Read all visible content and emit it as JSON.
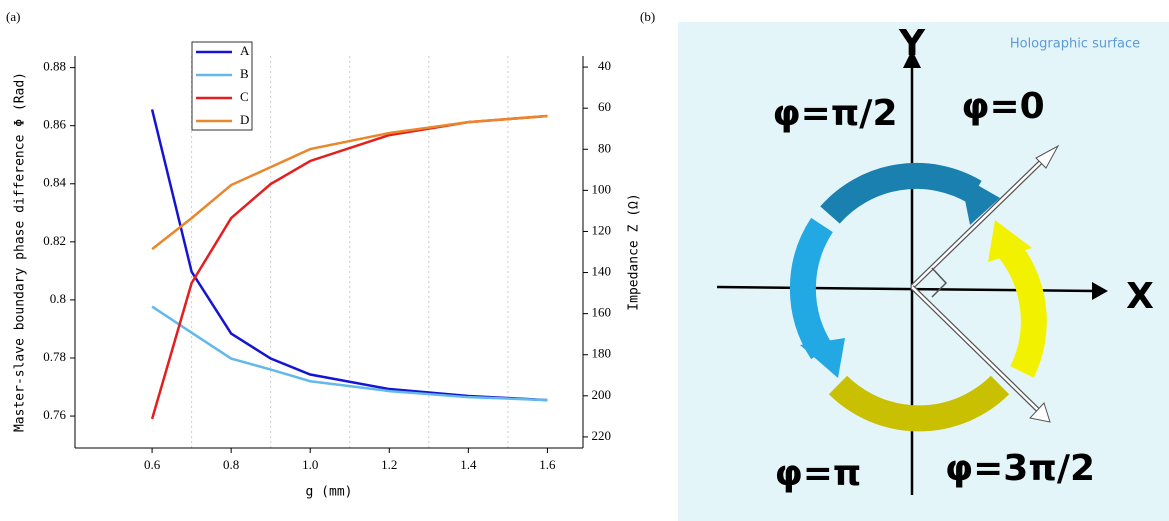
{
  "panel_a": "(a)",
  "chart_data": {
    "type": "line",
    "ylabel": "Master-slave boundary phase difference Φ (Rad)",
    "y2label": "Impedance Z (Ω)",
    "xlabel": "g (mm)",
    "x": [
      0.6,
      0.7,
      0.8,
      0.9,
      1.0,
      1.2,
      1.4,
      1.6
    ],
    "series": [
      {
        "name": "A",
        "color": "#1414d2",
        "values": [
          0.8656,
          0.8097,
          0.7884,
          0.7798,
          0.7743,
          0.7693,
          0.7669,
          0.7655
        ]
      },
      {
        "name": "B",
        "color": "#62b9ea",
        "values": [
          0.7977,
          0.7887,
          0.7798,
          0.776,
          0.772,
          0.7686,
          0.7665,
          0.7655
        ]
      },
      {
        "name": "C",
        "color": "#e41e1e",
        "axis": "y2",
        "values": [
          211.3,
          145.1,
          113.5,
          96.9,
          85.7,
          73.1,
          66.8,
          63.8
        ]
      },
      {
        "name": "D",
        "color": "#ea862c",
        "axis": "y2",
        "values": [
          128.6,
          113.5,
          97.4,
          88.7,
          79.9,
          72.1,
          66.8,
          63.8
        ]
      }
    ],
    "xlim": [
      0.405,
      1.69
    ],
    "xticks": [
      0.6,
      0.8,
      {
        "value": 1.0,
        "label": "1.0"
      },
      1.2,
      1.4,
      1.6
    ],
    "xgrid": [
      0.7,
      0.9,
      1.1,
      1.3,
      1.5
    ],
    "ylim": [
      0.749,
      0.884
    ],
    "yticks": [
      0.76,
      0.78,
      0.8,
      0.82,
      0.84,
      0.86,
      0.88
    ],
    "y2lim": [
      225.4,
      34.6
    ],
    "y2ticks": [
      40,
      60,
      80,
      100,
      120,
      140,
      160,
      180,
      200,
      220
    ]
  },
  "diagram": {
    "panel": "(b)",
    "surface": "Holographic surface",
    "y_axis": "Y",
    "x_axis": "X",
    "labels": [
      "φ=π/2",
      "φ=0",
      "φ=π",
      "φ=3π/2"
    ]
  }
}
